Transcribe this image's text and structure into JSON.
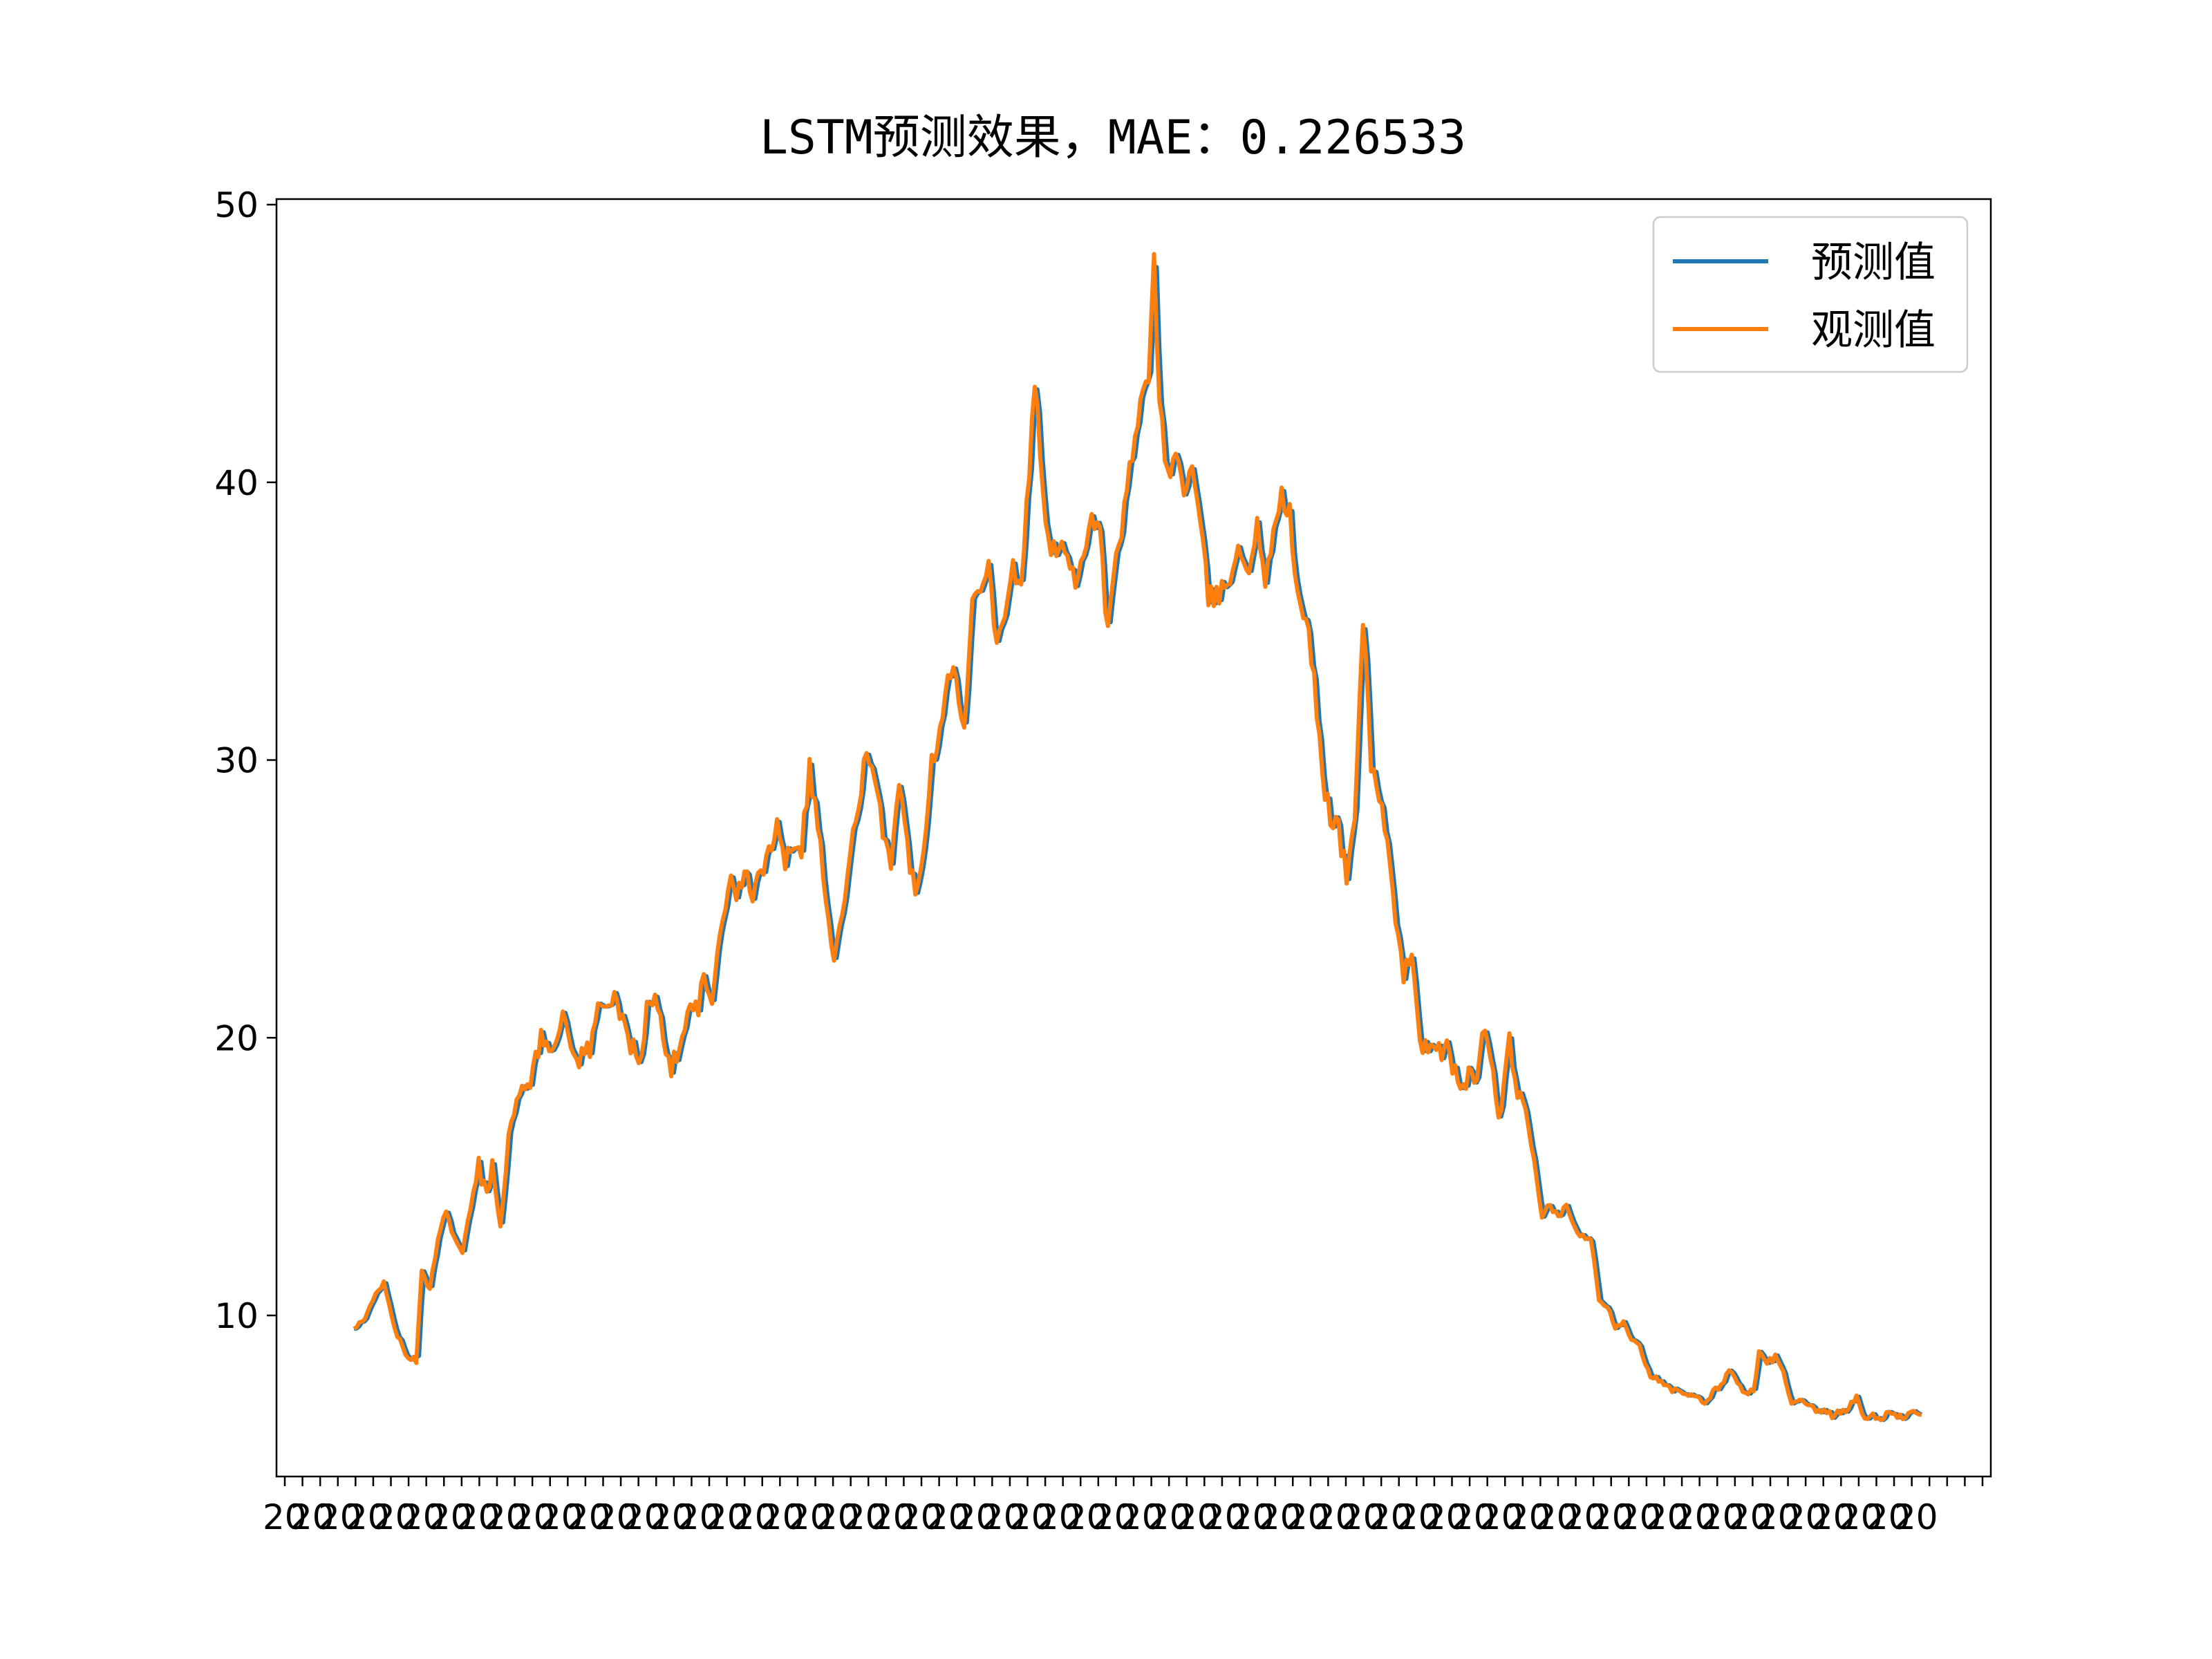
{
  "chart_data": {
    "type": "line",
    "title": "LSTM预测效果，MAE：0.226533",
    "xlabel": "",
    "ylabel": "",
    "ylim": [
      4.2,
      50.2
    ],
    "yticks": [
      10,
      20,
      30,
      40,
      50
    ],
    "x_tick_label_note": "dense overlapping date labels, unreadable",
    "legend": {
      "placement": "top-right",
      "entries": [
        "预测值",
        "观测值"
      ]
    },
    "grid": false,
    "n_points": 456,
    "anchors": [
      [
        0,
        9.5
      ],
      [
        4,
        9.8
      ],
      [
        8,
        10.9
      ],
      [
        11,
        11.1
      ],
      [
        15,
        9.6
      ],
      [
        19,
        8.5
      ],
      [
        23,
        8.4
      ],
      [
        25,
        11.5
      ],
      [
        28,
        11.0
      ],
      [
        31,
        12.8
      ],
      [
        34,
        13.8
      ],
      [
        37,
        12.8
      ],
      [
        40,
        12.2
      ],
      [
        43,
        13.9
      ],
      [
        46,
        15.3
      ],
      [
        49,
        14.5
      ],
      [
        51,
        15.6
      ],
      [
        54,
        13.1
      ],
      [
        57,
        16.4
      ],
      [
        60,
        17.5
      ],
      [
        63,
        18.5
      ],
      [
        66,
        18.6
      ],
      [
        69,
        20.0
      ],
      [
        72,
        19.9
      ],
      [
        75,
        20.1
      ],
      [
        78,
        20.7
      ],
      [
        81,
        19.3
      ],
      [
        84,
        19.4
      ],
      [
        87,
        19.6
      ],
      [
        90,
        21.0
      ],
      [
        93,
        21.2
      ],
      [
        96,
        21.8
      ],
      [
        99,
        20.4
      ],
      [
        102,
        19.8
      ],
      [
        105,
        19.0
      ],
      [
        108,
        21.0
      ],
      [
        111,
        21.3
      ],
      [
        114,
        20.1
      ],
      [
        117,
        19.0
      ],
      [
        120,
        19.4
      ],
      [
        123,
        21.3
      ],
      [
        126,
        20.9
      ],
      [
        129,
        21.9
      ],
      [
        132,
        21.2
      ],
      [
        135,
        24.0
      ],
      [
        138,
        25.5
      ],
      [
        141,
        25.2
      ],
      [
        144,
        25.8
      ],
      [
        147,
        25.3
      ],
      [
        150,
        25.9
      ],
      [
        153,
        26.5
      ],
      [
        156,
        28.1
      ],
      [
        159,
        26.3
      ],
      [
        162,
        27.2
      ],
      [
        165,
        26.9
      ],
      [
        168,
        29.7
      ],
      [
        171,
        27.8
      ],
      [
        174,
        25.0
      ],
      [
        177,
        22.6
      ],
      [
        180,
        24.5
      ],
      [
        183,
        26.4
      ],
      [
        186,
        28.6
      ],
      [
        189,
        30.2
      ],
      [
        192,
        29.0
      ],
      [
        195,
        27.6
      ],
      [
        198,
        26.5
      ],
      [
        201,
        29.0
      ],
      [
        204,
        27.0
      ],
      [
        207,
        25.1
      ],
      [
        210,
        27.0
      ],
      [
        213,
        30.0
      ],
      [
        216,
        31.0
      ],
      [
        219,
        33.5
      ],
      [
        222,
        32.8
      ],
      [
        225,
        31.0
      ],
      [
        228,
        35.5
      ],
      [
        231,
        36.5
      ],
      [
        234,
        37.3
      ],
      [
        237,
        34.0
      ],
      [
        240,
        35.5
      ],
      [
        243,
        37.0
      ],
      [
        246,
        36.0
      ],
      [
        249,
        40.5
      ],
      [
        251,
        43.8
      ],
      [
        254,
        39.5
      ],
      [
        257,
        37.2
      ],
      [
        260,
        38.0
      ],
      [
        263,
        37.5
      ],
      [
        266,
        36.5
      ],
      [
        269,
        37.4
      ],
      [
        272,
        38.9
      ],
      [
        275,
        38.2
      ],
      [
        278,
        34.5
      ],
      [
        281,
        37.3
      ],
      [
        284,
        38.9
      ],
      [
        287,
        41.0
      ],
      [
        290,
        42.6
      ],
      [
        293,
        44.0
      ],
      [
        295,
        47.8
      ],
      [
        297,
        43.2
      ],
      [
        300,
        40.1
      ],
      [
        303,
        41.0
      ],
      [
        306,
        39.8
      ],
      [
        309,
        40.5
      ],
      [
        312,
        38.4
      ],
      [
        315,
        35.9
      ],
      [
        318,
        35.8
      ],
      [
        321,
        36.3
      ],
      [
        324,
        37.0
      ],
      [
        327,
        37.5
      ],
      [
        330,
        36.8
      ],
      [
        333,
        38.8
      ],
      [
        336,
        36.0
      ],
      [
        339,
        38.5
      ],
      [
        342,
        39.5
      ],
      [
        345,
        38.8
      ],
      [
        348,
        35.7
      ],
      [
        351,
        35.0
      ],
      [
        354,
        33.0
      ],
      [
        357,
        29.5
      ],
      [
        360,
        28.0
      ],
      [
        363,
        27.5
      ],
      [
        366,
        25.7
      ],
      [
        369,
        28.0
      ],
      [
        372,
        35.2
      ],
      [
        375,
        30.0
      ],
      [
        378,
        28.8
      ],
      [
        381,
        27.0
      ],
      [
        384,
        24.0
      ],
      [
        387,
        22.0
      ],
      [
        390,
        23.4
      ],
      [
        393,
        20.0
      ],
      [
        396,
        19.5
      ],
      [
        399,
        19.3
      ],
      [
        402,
        19.8
      ],
      [
        405,
        18.9
      ],
      [
        408,
        18.2
      ],
      [
        411,
        18.8
      ],
      [
        414,
        18.3
      ],
      [
        417,
        20.6
      ],
      [
        420,
        18.5
      ],
      [
        423,
        17.0
      ],
      [
        426,
        20.0
      ],
      [
        429,
        18.0
      ],
      [
        432,
        17.0
      ],
      [
        435,
        15.9
      ],
      [
        438,
        13.5
      ],
      [
        441,
        14.0
      ],
      [
        444,
        13.5
      ],
      [
        447,
        13.9
      ],
      [
        450,
        13.2
      ],
      [
        453,
        12.8
      ],
      [
        456,
        12.8
      ]
    ],
    "series": [
      {
        "name": "预测值",
        "color": "#1f77b4"
      },
      {
        "name": "观测值",
        "color": "#ff7f0e"
      }
    ],
    "tail_anchors": [
      [
        0,
        12.8
      ],
      [
        3,
        10.5
      ],
      [
        6,
        10.3
      ],
      [
        9,
        9.6
      ],
      [
        12,
        9.8
      ],
      [
        15,
        9.2
      ],
      [
        18,
        9.0
      ],
      [
        21,
        8.0
      ],
      [
        24,
        7.7
      ],
      [
        27,
        7.5
      ],
      [
        30,
        7.3
      ],
      [
        33,
        7.2
      ],
      [
        36,
        7.1
      ],
      [
        39,
        7.0
      ],
      [
        42,
        6.9
      ],
      [
        45,
        7.2
      ],
      [
        48,
        7.5
      ],
      [
        51,
        8.1
      ],
      [
        54,
        7.5
      ],
      [
        57,
        7.3
      ],
      [
        60,
        7.2
      ],
      [
        62,
        8.6
      ],
      [
        65,
        8.3
      ],
      [
        68,
        8.5
      ],
      [
        71,
        7.9
      ],
      [
        74,
        6.8
      ],
      [
        77,
        6.9
      ],
      [
        80,
        6.7
      ],
      [
        83,
        6.6
      ],
      [
        86,
        6.5
      ],
      [
        89,
        6.4
      ],
      [
        92,
        6.5
      ],
      [
        95,
        6.7
      ],
      [
        98,
        7.0
      ],
      [
        101,
        6.3
      ],
      [
        104,
        6.4
      ],
      [
        107,
        6.3
      ],
      [
        110,
        6.5
      ],
      [
        113,
        6.3
      ],
      [
        116,
        6.4
      ],
      [
        119,
        6.5
      ],
      [
        122,
        6.4
      ]
    ]
  }
}
